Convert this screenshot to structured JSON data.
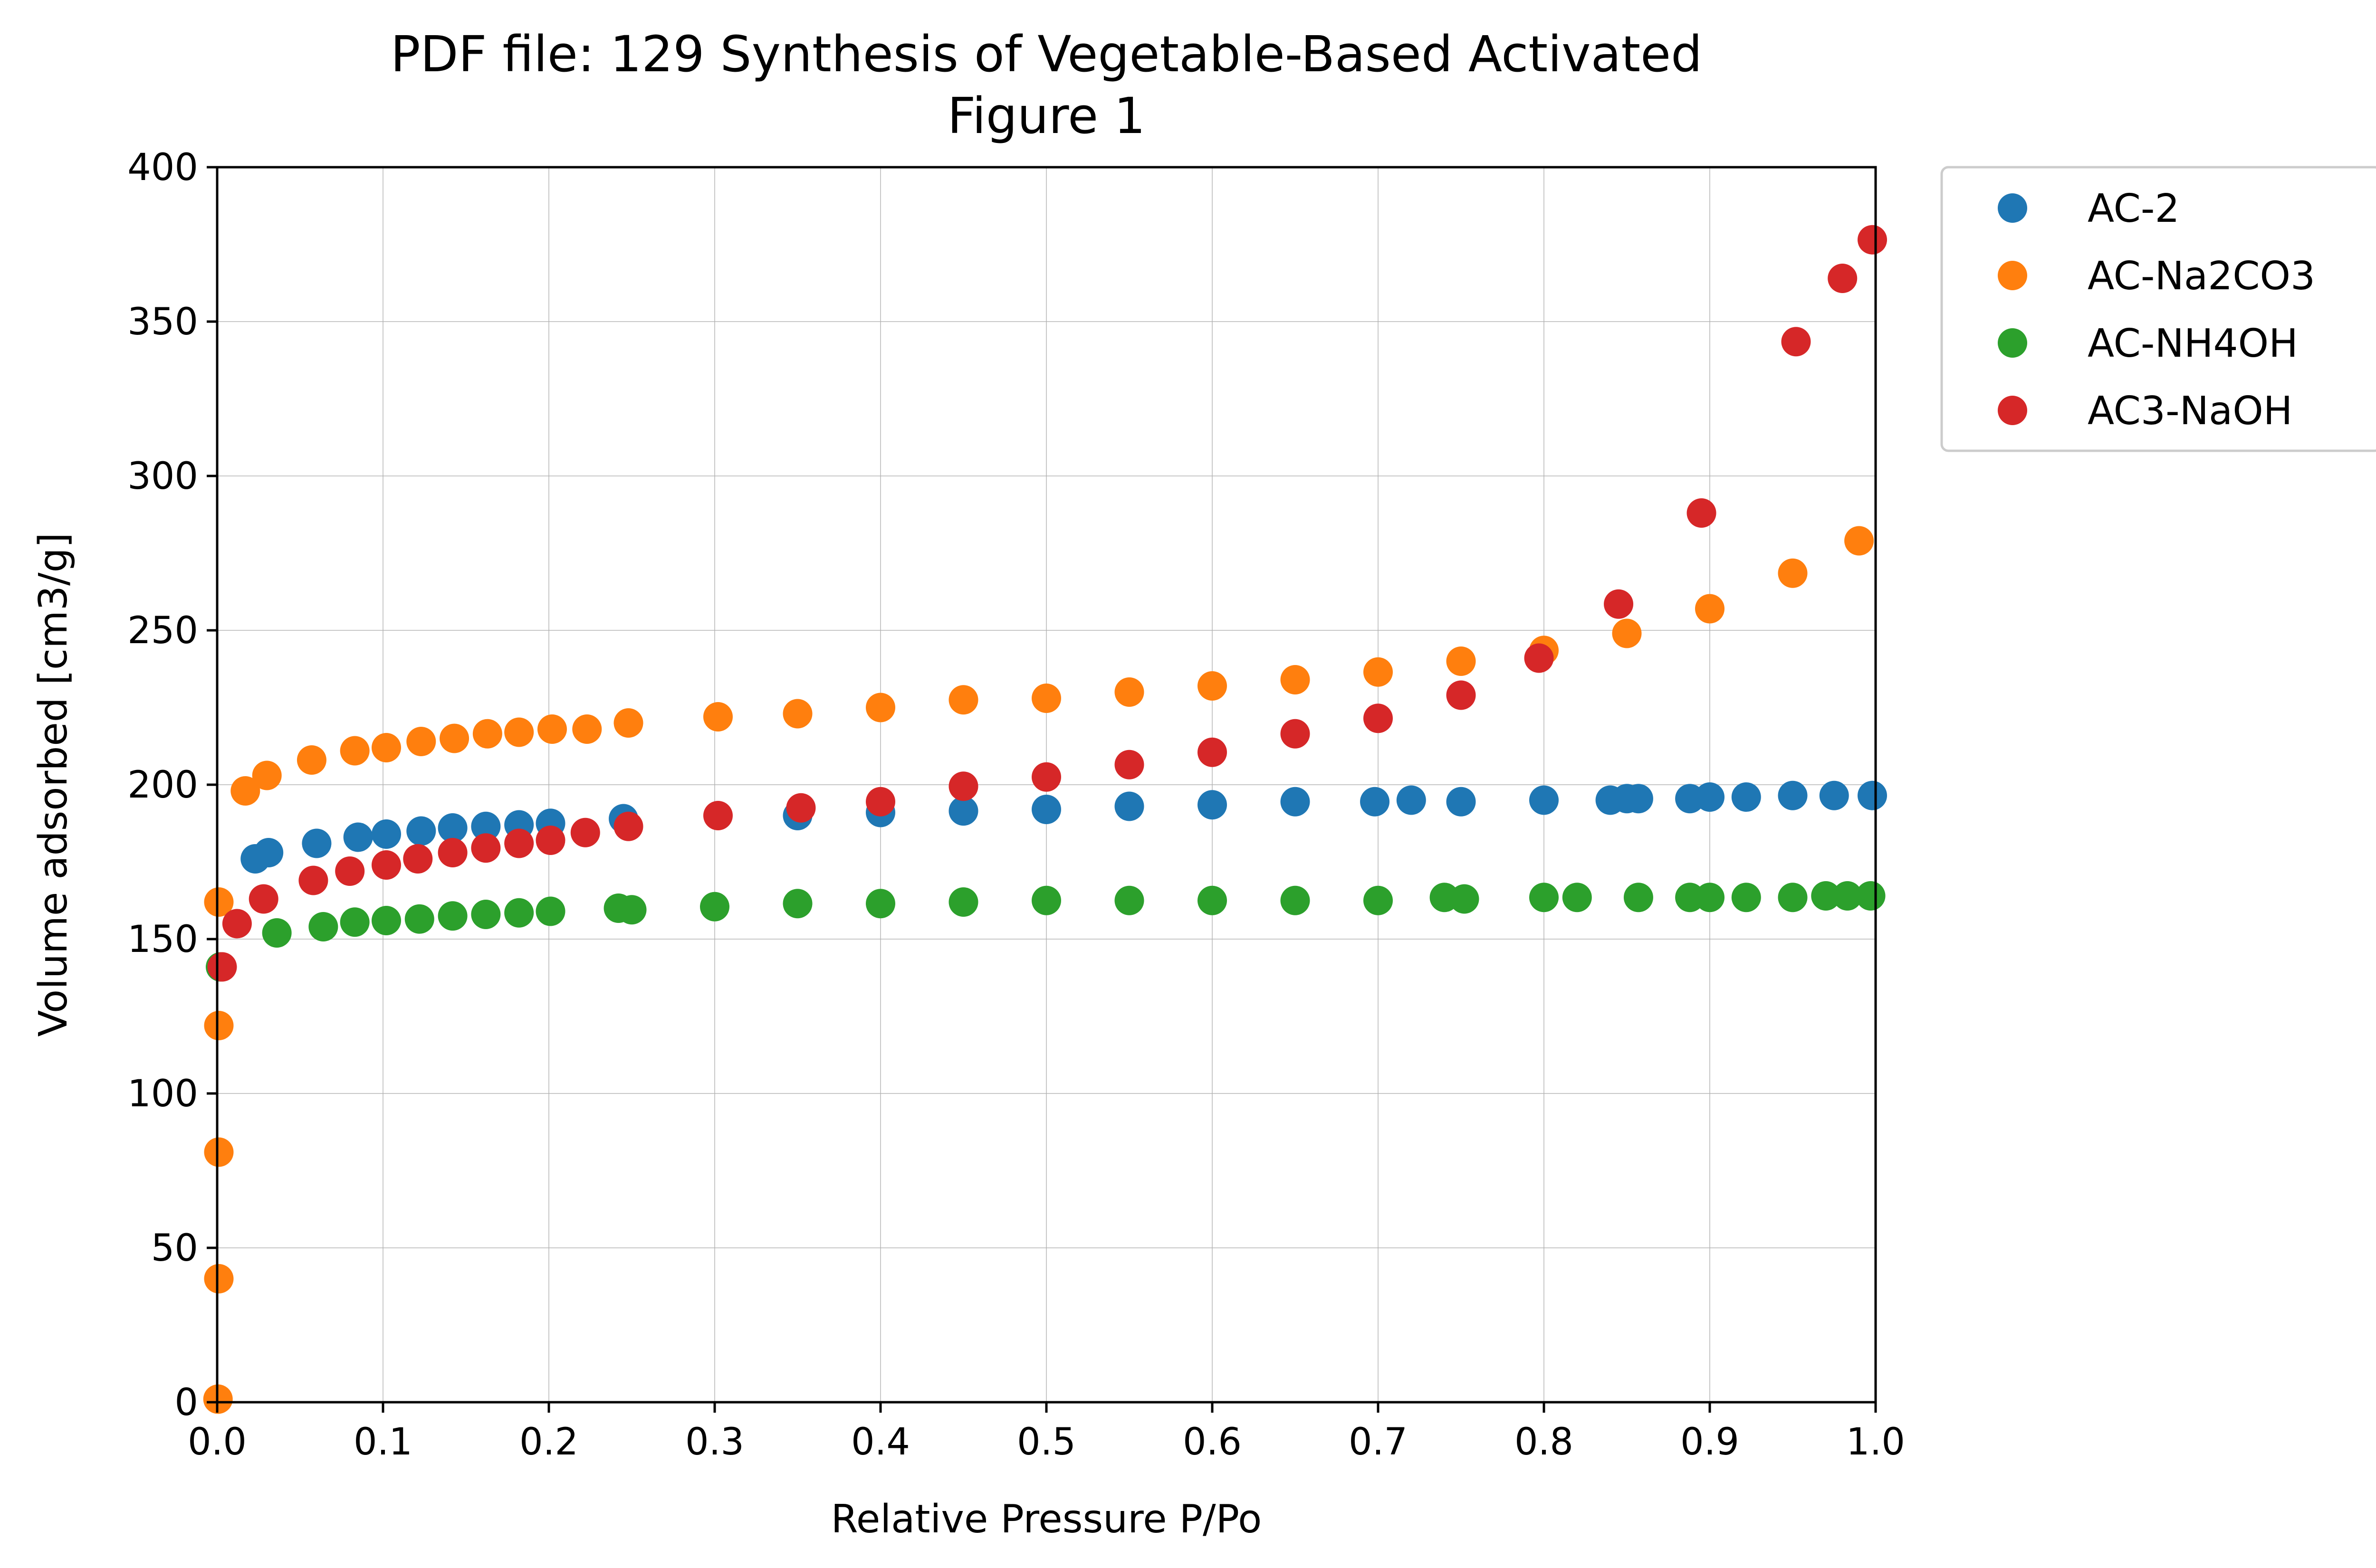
{
  "chart_data": {
    "type": "scatter",
    "title": [
      "PDF file: 129 Synthesis of Vegetable-Based Activated",
      "Figure 1"
    ],
    "xlabel": "Relative Pressure P/Po",
    "ylabel": "Volume adsorbed [cm3/g]",
    "xlim": [
      0,
      1.0
    ],
    "ylim": [
      0,
      400
    ],
    "xticks": [
      "0.0",
      "0.1",
      "0.2",
      "0.3",
      "0.4",
      "0.5",
      "0.6",
      "0.7",
      "0.8",
      "0.9",
      "1.0"
    ],
    "yticks": [
      "0",
      "50",
      "100",
      "150",
      "200",
      "250",
      "300",
      "350",
      "400"
    ],
    "grid": true,
    "legend_position": "outside-top-right",
    "series": [
      {
        "name": "AC-2",
        "color": "#1f77b4",
        "points": [
          [
            0.023,
            176
          ],
          [
            0.031,
            178
          ],
          [
            0.06,
            181
          ],
          [
            0.085,
            183
          ],
          [
            0.102,
            184
          ],
          [
            0.123,
            185
          ],
          [
            0.142,
            186
          ],
          [
            0.162,
            186.5
          ],
          [
            0.182,
            187
          ],
          [
            0.201,
            187.5
          ],
          [
            0.245,
            189
          ],
          [
            0.35,
            190
          ],
          [
            0.4,
            191
          ],
          [
            0.45,
            191.5
          ],
          [
            0.5,
            192
          ],
          [
            0.55,
            193
          ],
          [
            0.6,
            193.5
          ],
          [
            0.65,
            194.5
          ],
          [
            0.698,
            194.5
          ],
          [
            0.72,
            195
          ],
          [
            0.75,
            194.5
          ],
          [
            0.8,
            195
          ],
          [
            0.84,
            195
          ],
          [
            0.85,
            195.5
          ],
          [
            0.857,
            195.5
          ],
          [
            0.888,
            195.5
          ],
          [
            0.9,
            196
          ],
          [
            0.922,
            196
          ],
          [
            0.95,
            196.5
          ],
          [
            0.975,
            196.5
          ],
          [
            0.998,
            196.5
          ]
        ]
      },
      {
        "name": "AC-Na2CO3",
        "color": "#ff7f0e",
        "points": [
          [
            0.0005,
            1
          ],
          [
            0.001,
            40
          ],
          [
            0.001,
            81
          ],
          [
            0.001,
            122
          ],
          [
            0.001,
            162
          ],
          [
            0.017,
            198
          ],
          [
            0.03,
            203
          ],
          [
            0.057,
            208
          ],
          [
            0.083,
            211
          ],
          [
            0.102,
            212
          ],
          [
            0.123,
            214
          ],
          [
            0.143,
            215
          ],
          [
            0.163,
            216.5
          ],
          [
            0.182,
            217
          ],
          [
            0.202,
            218
          ],
          [
            0.223,
            218
          ],
          [
            0.248,
            220
          ],
          [
            0.302,
            222
          ],
          [
            0.35,
            223
          ],
          [
            0.4,
            225
          ],
          [
            0.45,
            227.5
          ],
          [
            0.5,
            228
          ],
          [
            0.55,
            230
          ],
          [
            0.6,
            232
          ],
          [
            0.65,
            234
          ],
          [
            0.7,
            236.5
          ],
          [
            0.75,
            240
          ],
          [
            0.8,
            243.5
          ],
          [
            0.85,
            249
          ],
          [
            0.9,
            257
          ],
          [
            0.95,
            268.5
          ],
          [
            0.99,
            279
          ]
        ]
      },
      {
        "name": "AC-NH4OH",
        "color": "#2ca02c",
        "points": [
          [
            0.002,
            141
          ],
          [
            0.036,
            152
          ],
          [
            0.064,
            154
          ],
          [
            0.083,
            155.5
          ],
          [
            0.102,
            156
          ],
          [
            0.122,
            156.5
          ],
          [
            0.142,
            157.5
          ],
          [
            0.162,
            158
          ],
          [
            0.182,
            158.5
          ],
          [
            0.201,
            159
          ],
          [
            0.242,
            160
          ],
          [
            0.25,
            159.5
          ],
          [
            0.3,
            160.5
          ],
          [
            0.35,
            161.5
          ],
          [
            0.4,
            161.5
          ],
          [
            0.45,
            162
          ],
          [
            0.5,
            162.5
          ],
          [
            0.55,
            162.5
          ],
          [
            0.6,
            162.5
          ],
          [
            0.65,
            162.5
          ],
          [
            0.7,
            162.5
          ],
          [
            0.74,
            163.5
          ],
          [
            0.752,
            163
          ],
          [
            0.8,
            163.5
          ],
          [
            0.82,
            163.5
          ],
          [
            0.857,
            163.5
          ],
          [
            0.888,
            163.5
          ],
          [
            0.9,
            163.5
          ],
          [
            0.922,
            163.5
          ],
          [
            0.95,
            163.5
          ],
          [
            0.97,
            164
          ],
          [
            0.983,
            164
          ],
          [
            0.997,
            164
          ]
        ]
      },
      {
        "name": "AC3-NaOH",
        "color": "#d62728",
        "points": [
          [
            0.003,
            141
          ],
          [
            0.012,
            155
          ],
          [
            0.028,
            163
          ],
          [
            0.058,
            169
          ],
          [
            0.08,
            172
          ],
          [
            0.102,
            174
          ],
          [
            0.121,
            176
          ],
          [
            0.142,
            178
          ],
          [
            0.162,
            179.5
          ],
          [
            0.182,
            181
          ],
          [
            0.201,
            182
          ],
          [
            0.222,
            184.5
          ],
          [
            0.248,
            186.5
          ],
          [
            0.302,
            190
          ],
          [
            0.352,
            192.5
          ],
          [
            0.4,
            194.5
          ],
          [
            0.45,
            199.5
          ],
          [
            0.5,
            202.5
          ],
          [
            0.55,
            206.5
          ],
          [
            0.6,
            210.5
          ],
          [
            0.65,
            216.5
          ],
          [
            0.7,
            221.5
          ],
          [
            0.75,
            229
          ],
          [
            0.797,
            241
          ],
          [
            0.845,
            258.5
          ],
          [
            0.895,
            288
          ],
          [
            0.952,
            343.5
          ],
          [
            0.98,
            364
          ],
          [
            0.998,
            376.5
          ]
        ]
      }
    ]
  }
}
